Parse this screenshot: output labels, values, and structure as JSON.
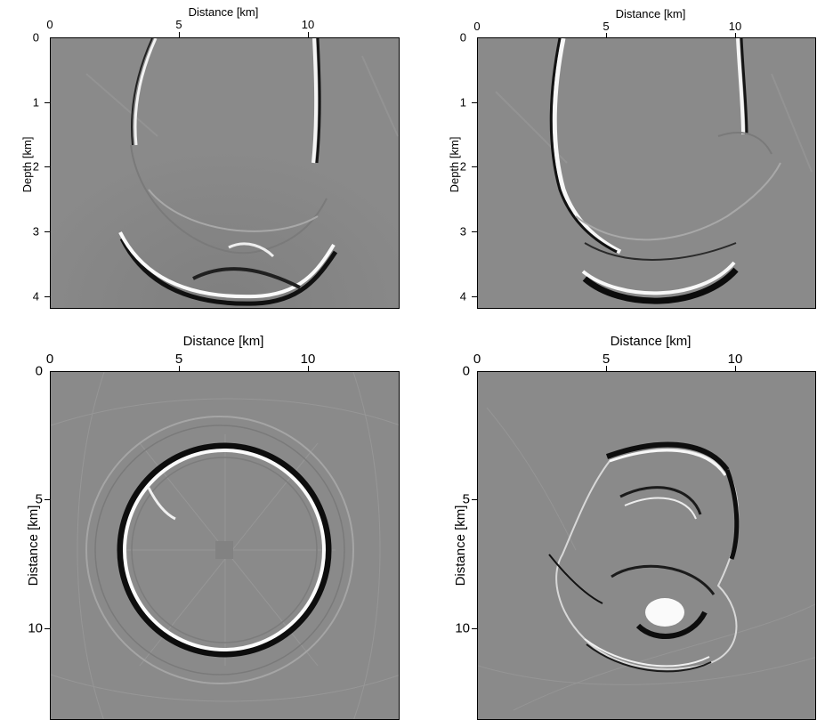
{
  "panels": [
    {
      "id": "top-left",
      "x_label": "Distance [km]",
      "y_label": "Depth [km]",
      "x_ticks": [
        "0",
        "5",
        "10"
      ],
      "y_ticks": [
        "0",
        "1",
        "2",
        "3",
        "4"
      ],
      "x_range": [
        0,
        13.5
      ],
      "y_range": [
        0,
        4.2
      ],
      "image": "seismic migrated section (depth)"
    },
    {
      "id": "top-right",
      "x_label": "Distance [km]",
      "y_label": "Depth [km]",
      "x_ticks": [
        "0",
        "5",
        "10"
      ],
      "y_ticks": [
        "0",
        "1",
        "2",
        "3",
        "4"
      ],
      "x_range": [
        0,
        13.5
      ],
      "y_range": [
        0,
        4.2
      ],
      "image": "seismic migrated section (depth)"
    },
    {
      "id": "bottom-left",
      "x_label": "Distance [km]",
      "y_label": "Distance [km]",
      "x_ticks": [
        "0",
        "5",
        "10"
      ],
      "y_ticks": [
        "0",
        "5",
        "10"
      ],
      "x_range": [
        0,
        13.5
      ],
      "y_range": [
        0,
        13.5
      ],
      "image": "depth slice with circular reflector"
    },
    {
      "id": "bottom-right",
      "x_label": "Distance [km]",
      "y_label": "Distance [km]",
      "x_ticks": [
        "0",
        "5",
        "10"
      ],
      "y_ticks": [
        "0",
        "5",
        "10"
      ],
      "x_range": [
        0,
        13.5
      ],
      "y_range": [
        0,
        13.5
      ],
      "image": "depth slice with irregular salt body"
    }
  ],
  "colors": {
    "background_gray": "#8a8a8a",
    "frame": "#000000"
  }
}
